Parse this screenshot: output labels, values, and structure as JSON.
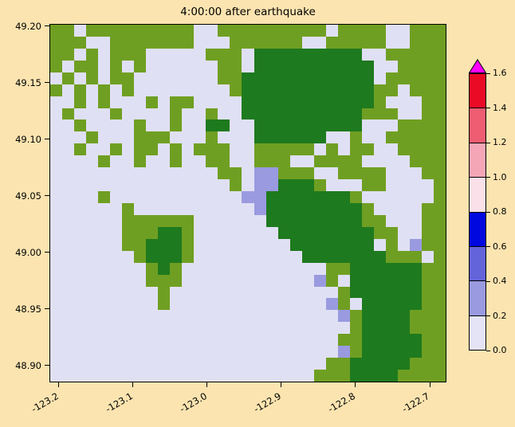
{
  "figure": {
    "background": "#fce4b0"
  },
  "chart_data": {
    "type": "heatmap",
    "title": "4:00:00 after earthquake",
    "xlabel": "",
    "ylabel": "",
    "xlim": [
      -123.2125,
      -122.6775
    ],
    "ylim": [
      48.885,
      49.202
    ],
    "grid": "off",
    "xticks": [
      {
        "value": -123.2,
        "label": "-123.2"
      },
      {
        "value": -123.1,
        "label": "-123.1"
      },
      {
        "value": -123.0,
        "label": "-123.0"
      },
      {
        "value": -122.9,
        "label": "-122.9"
      },
      {
        "value": -122.8,
        "label": "-122.8"
      },
      {
        "value": -122.7,
        "label": "-122.7"
      }
    ],
    "yticks": [
      {
        "value": 48.9,
        "label": "48.90"
      },
      {
        "value": 48.95,
        "label": "48.95"
      },
      {
        "value": 49.0,
        "label": "49.00"
      },
      {
        "value": 49.05,
        "label": "49.05"
      },
      {
        "value": 49.1,
        "label": "49.10"
      },
      {
        "value": 49.15,
        "label": "49.15"
      },
      {
        "value": 49.2,
        "label": "49.20"
      }
    ],
    "colorbar": {
      "position": "right",
      "levels": [
        0.0,
        0.2,
        0.4,
        0.6,
        0.8,
        1.0,
        1.2,
        1.4,
        1.6
      ],
      "tick_labels": [
        "0.0",
        "0.2",
        "0.4",
        "0.6",
        "0.8",
        "1.0",
        "1.2",
        "1.4",
        "1.6"
      ],
      "segment_colors": [
        "#e4e4f6",
        "#9a9ae0",
        "#6464da",
        "#0008e0",
        "#fae0e8",
        "#f4a6b6",
        "#ee5d72",
        "#ea0a26"
      ],
      "over_color": "#ff00ff"
    },
    "raster": {
      "cols": 33,
      "rows": 30,
      "cell_colors": {
        "w": "#e0e0f4",
        "g": "#6f9f22",
        "G": "#1e7a1e",
        "p": "#9a9ae0"
      },
      "legend": {
        "w": "water near 0.0-0.2",
        "p": "water 0.2-0.4",
        "g": "land (light green)",
        "G": "land (dark green)"
      },
      "rows_data": [
        "ggwgggggggggwwgggggggggwggggwwggg",
        "gggwwgggggggwwwggggggwwgggggwwggg",
        "ggwgwgggwwwwwgggwGGGGGGGGGwwggggg",
        "gwggwgwgwwwwwwggwGGGGGGGGGGwwgggg",
        "wgwgwggwwwwwwwggGGGGGGGGGGGwggggg",
        "gwgwgwgwwwwwwwwgGGGGGGGGGGGggwggg",
        "wwgwgwwwgwggwwwwGGGGGGGGGGGgwwwgg",
        "wgwwwgwwwwgwwgwwGGGGGGGGGGgggwwgg",
        "wwgwwwwgwwgwwGGwwGGGGGGGGGwwwgggg",
        "wwwgwwwgggwwwgwwwGGGGGGwwgwwggggg",
        "wwgwwgwggwgwgggwwgggggwgwggwwgggg",
        "wwwwgwwgwwgwwggwwgggwwggggwwwwggg",
        "wwwwwwwwwwwwwwggwppgggwwggggwwwgg",
        "wwwwwwwwwwwwwwwgwppGGGgwwwggwwwwg",
        "wwwwgwwwwwwwwwwwppGGGGGGGgwwwwwwg",
        "wwwwwwgwwwwwwwwwwpGGGGGGGGgwwwwgg",
        "wwwwwwggggggwwwwwwGGGGGGGGggwwwgg",
        "wwwwwwgggGGgwwwwwwwGGGGGGGGggwwgg",
        "wwwwwwggGGGgwwwwwwwwGGGGGGGwgwpgg",
        "wwwwwwwgGGGgwwwwwwwwwGGGGGGGgggwg",
        "wwwwwwwwgGgwwwwwwwwwwwwggGGGGGGgg",
        "wwwwwwwwgggwwwwwwwwwwwpgwGGGGGGgg",
        "wwwwwwwwwgwwwwwwwwwwwwwwgGGGGGGgg",
        "wwwwwwwwwgwwwwwwwwwwwwwpgwGGGGGgg",
        "wwwwwwwwwwwwwwwwwwwwwwwwpgGGGGggg",
        "wwwwwwwwwwwwwwwwwwwwwwwwwgGGGGggg",
        "wwwwwwwwwwwwwwwwwwwwwwwwggGGGGGgg",
        "wwwwwwwwwwwwwwwwwwwwwwwwpgGGGGGgg",
        "wwwwwwwwwwwwwwwwwwwwwwwggGGGGGggg",
        "wwwwwwwwwwwwwwwwwwwwwwgggGGGGgggg"
      ]
    }
  }
}
